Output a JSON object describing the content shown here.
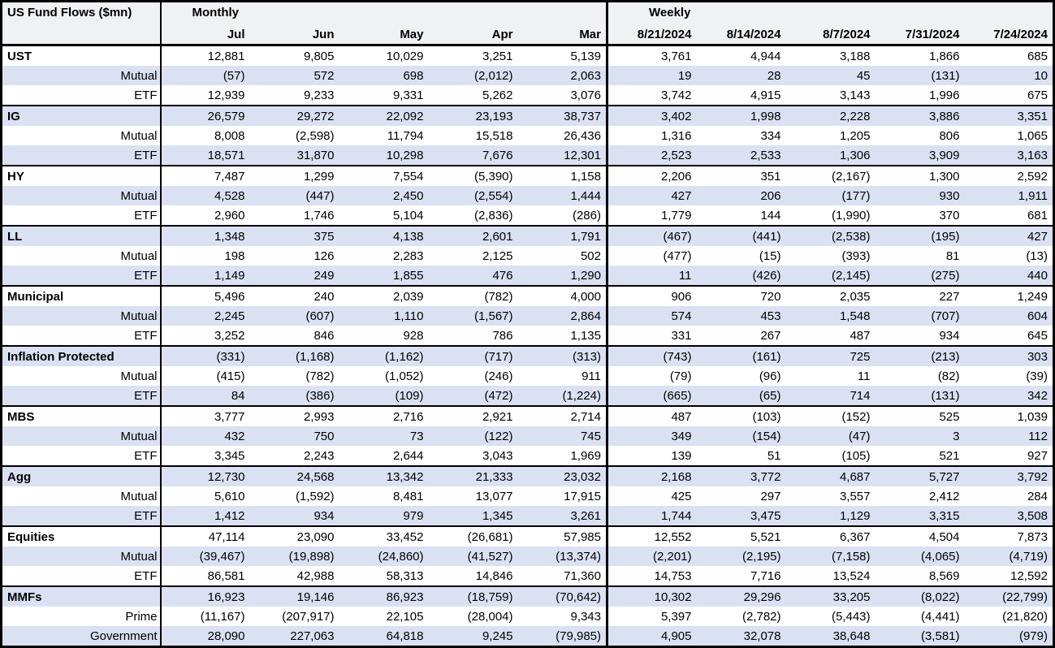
{
  "colors": {
    "row_stripe": "#d9e1f2",
    "header_background": "#f0f1f3",
    "border": "#000000",
    "text": "#000000"
  },
  "chart_data": {
    "type": "table",
    "title": "US Fund Flows ($mn)",
    "units": "$mn",
    "negative_format": "parentheses",
    "column_groups": [
      {
        "label": "Monthly",
        "span": 5
      },
      {
        "label": "Weekly",
        "span": 5
      }
    ],
    "columns": [
      "Jul",
      "Jun",
      "May",
      "Apr",
      "Mar",
      "8/21/2024",
      "8/14/2024",
      "8/7/2024",
      "7/31/2024",
      "7/24/2024"
    ],
    "sections": [
      {
        "rows": [
          {
            "label": "UST",
            "values": [
              "12,881",
              "9,805",
              "10,029",
              "3,251",
              "5,139",
              "3,761",
              "4,944",
              "3,188",
              "1,866",
              "685"
            ]
          },
          {
            "label": "Mutual",
            "values": [
              "(57)",
              "572",
              "698",
              "(2,012)",
              "2,063",
              "19",
              "28",
              "45",
              "(131)",
              "10"
            ]
          },
          {
            "label": "ETF",
            "values": [
              "12,939",
              "9,233",
              "9,331",
              "5,262",
              "3,076",
              "3,742",
              "4,915",
              "3,143",
              "1,996",
              "675"
            ]
          }
        ]
      },
      {
        "rows": [
          {
            "label": "IG",
            "values": [
              "26,579",
              "29,272",
              "22,092",
              "23,193",
              "38,737",
              "3,402",
              "1,998",
              "2,228",
              "3,886",
              "3,351"
            ]
          },
          {
            "label": "Mutual",
            "values": [
              "8,008",
              "(2,598)",
              "11,794",
              "15,518",
              "26,436",
              "1,316",
              "334",
              "1,205",
              "806",
              "1,065"
            ]
          },
          {
            "label": "ETF",
            "values": [
              "18,571",
              "31,870",
              "10,298",
              "7,676",
              "12,301",
              "2,523",
              "2,533",
              "1,306",
              "3,909",
              "3,163"
            ]
          }
        ]
      },
      {
        "rows": [
          {
            "label": "HY",
            "values": [
              "7,487",
              "1,299",
              "7,554",
              "(5,390)",
              "1,158",
              "2,206",
              "351",
              "(2,167)",
              "1,300",
              "2,592"
            ]
          },
          {
            "label": "Mutual",
            "values": [
              "4,528",
              "(447)",
              "2,450",
              "(2,554)",
              "1,444",
              "427",
              "206",
              "(177)",
              "930",
              "1,911"
            ]
          },
          {
            "label": "ETF",
            "values": [
              "2,960",
              "1,746",
              "5,104",
              "(2,836)",
              "(286)",
              "1,779",
              "144",
              "(1,990)",
              "370",
              "681"
            ]
          }
        ]
      },
      {
        "rows": [
          {
            "label": "LL",
            "values": [
              "1,348",
              "375",
              "4,138",
              "2,601",
              "1,791",
              "(467)",
              "(441)",
              "(2,538)",
              "(195)",
              "427"
            ]
          },
          {
            "label": "Mutual",
            "values": [
              "198",
              "126",
              "2,283",
              "2,125",
              "502",
              "(477)",
              "(15)",
              "(393)",
              "81",
              "(13)"
            ]
          },
          {
            "label": "ETF",
            "values": [
              "1,149",
              "249",
              "1,855",
              "476",
              "1,290",
              "11",
              "(426)",
              "(2,145)",
              "(275)",
              "440"
            ]
          }
        ]
      },
      {
        "rows": [
          {
            "label": "Municipal",
            "values": [
              "5,496",
              "240",
              "2,039",
              "(782)",
              "4,000",
              "906",
              "720",
              "2,035",
              "227",
              "1,249"
            ]
          },
          {
            "label": "Mutual",
            "values": [
              "2,245",
              "(607)",
              "1,110",
              "(1,567)",
              "2,864",
              "574",
              "453",
              "1,548",
              "(707)",
              "604"
            ]
          },
          {
            "label": "ETF",
            "values": [
              "3,252",
              "846",
              "928",
              "786",
              "1,135",
              "331",
              "267",
              "487",
              "934",
              "645"
            ]
          }
        ]
      },
      {
        "rows": [
          {
            "label": "Inflation Protected",
            "values": [
              "(331)",
              "(1,168)",
              "(1,162)",
              "(717)",
              "(313)",
              "(743)",
              "(161)",
              "725",
              "(213)",
              "303"
            ]
          },
          {
            "label": "Mutual",
            "values": [
              "(415)",
              "(782)",
              "(1,052)",
              "(246)",
              "911",
              "(79)",
              "(96)",
              "11",
              "(82)",
              "(39)"
            ]
          },
          {
            "label": "ETF",
            "values": [
              "84",
              "(386)",
              "(109)",
              "(472)",
              "(1,224)",
              "(665)",
              "(65)",
              "714",
              "(131)",
              "342"
            ]
          }
        ]
      },
      {
        "rows": [
          {
            "label": "MBS",
            "values": [
              "3,777",
              "2,993",
              "2,716",
              "2,921",
              "2,714",
              "487",
              "(103)",
              "(152)",
              "525",
              "1,039"
            ]
          },
          {
            "label": "Mutual",
            "values": [
              "432",
              "750",
              "73",
              "(122)",
              "745",
              "349",
              "(154)",
              "(47)",
              "3",
              "112"
            ]
          },
          {
            "label": "ETF",
            "values": [
              "3,345",
              "2,243",
              "2,644",
              "3,043",
              "1,969",
              "139",
              "51",
              "(105)",
              "521",
              "927"
            ]
          }
        ]
      },
      {
        "rows": [
          {
            "label": "Agg",
            "values": [
              "12,730",
              "24,568",
              "13,342",
              "21,333",
              "23,032",
              "2,168",
              "3,772",
              "4,687",
              "5,727",
              "3,792"
            ]
          },
          {
            "label": "Mutual",
            "values": [
              "5,610",
              "(1,592)",
              "8,481",
              "13,077",
              "17,915",
              "425",
              "297",
              "3,557",
              "2,412",
              "284"
            ]
          },
          {
            "label": "ETF",
            "values": [
              "1,412",
              "934",
              "979",
              "1,345",
              "3,261",
              "1,744",
              "3,475",
              "1,129",
              "3,315",
              "3,508"
            ]
          }
        ]
      },
      {
        "rows": [
          {
            "label": "Equities",
            "values": [
              "47,114",
              "23,090",
              "33,452",
              "(26,681)",
              "57,985",
              "12,552",
              "5,521",
              "6,367",
              "4,504",
              "7,873"
            ]
          },
          {
            "label": "Mutual",
            "values": [
              "(39,467)",
              "(19,898)",
              "(24,860)",
              "(41,527)",
              "(13,374)",
              "(2,201)",
              "(2,195)",
              "(7,158)",
              "(4,065)",
              "(4,719)"
            ]
          },
          {
            "label": "ETF",
            "values": [
              "86,581",
              "42,988",
              "58,313",
              "14,846",
              "71,360",
              "14,753",
              "7,716",
              "13,524",
              "8,569",
              "12,592"
            ]
          }
        ]
      },
      {
        "rows": [
          {
            "label": "MMFs",
            "values": [
              "16,923",
              "19,146",
              "86,923",
              "(18,759)",
              "(70,642)",
              "10,302",
              "29,296",
              "33,205",
              "(8,022)",
              "(22,799)"
            ]
          },
          {
            "label": "Prime",
            "values": [
              "(11,167)",
              "(207,917)",
              "22,105",
              "(28,004)",
              "9,343",
              "5,397",
              "(2,782)",
              "(5,443)",
              "(4,441)",
              "(21,820)"
            ]
          },
          {
            "label": "Government",
            "values": [
              "28,090",
              "227,063",
              "64,818",
              "9,245",
              "(79,985)",
              "4,905",
              "32,078",
              "38,648",
              "(3,581)",
              "(979)"
            ]
          }
        ]
      }
    ]
  }
}
